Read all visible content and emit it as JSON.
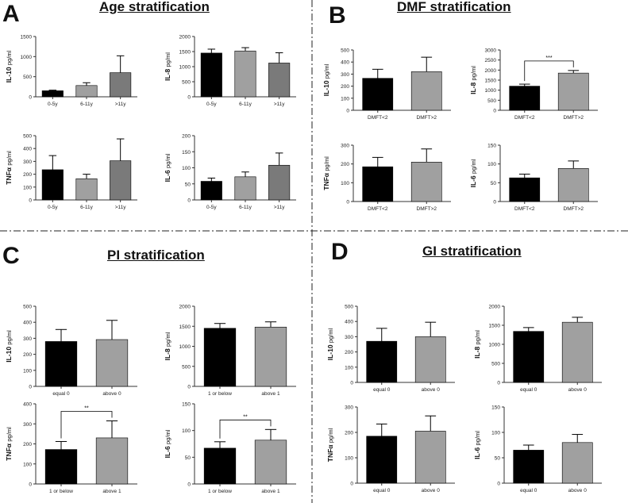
{
  "panels": [
    {
      "letter": "A",
      "title": "Age stratification"
    },
    {
      "letter": "B",
      "title": "DMF stratification"
    },
    {
      "letter": "C",
      "title": "PI stratification"
    },
    {
      "letter": "D",
      "title": "GI stratification"
    }
  ],
  "colors": {
    "black": "#000000",
    "light_gray": "#a0a0a0",
    "dark_gray": "#7a7a7a",
    "axis": "#333333"
  },
  "chart_data": [
    {
      "id": "A1",
      "type": "bar",
      "ylabel": "IL-10",
      "yunit": "pg/ml",
      "yticks": [
        0,
        500,
        1000,
        1500
      ],
      "ylim": [
        0,
        1500
      ],
      "categories": [
        "0-5y",
        "6-11y",
        ">11y"
      ],
      "values": [
        150,
        280,
        600
      ],
      "errors": [
        15,
        70,
        420
      ],
      "colors": [
        "black",
        "light_gray",
        "dark_gray"
      ]
    },
    {
      "id": "A2",
      "type": "bar",
      "ylabel": "IL-8",
      "yunit": "pg/ml",
      "yticks": [
        0,
        500,
        1000,
        1500,
        2000
      ],
      "ylim": [
        0,
        2000
      ],
      "categories": [
        "0-5y",
        "6-11y",
        ">11y"
      ],
      "values": [
        1450,
        1520,
        1120
      ],
      "errors": [
        130,
        110,
        340
      ],
      "colors": [
        "black",
        "light_gray",
        "dark_gray"
      ]
    },
    {
      "id": "A3",
      "type": "bar",
      "ylabel": "TNFα",
      "yunit": "pg/ml",
      "yticks": [
        0,
        100,
        200,
        300,
        400,
        500
      ],
      "ylim": [
        0,
        500
      ],
      "categories": [
        "0-5y",
        "6-11y",
        ">11y"
      ],
      "values": [
        235,
        165,
        305
      ],
      "errors": [
        110,
        35,
        170
      ],
      "colors": [
        "black",
        "light_gray",
        "dark_gray"
      ]
    },
    {
      "id": "A4",
      "type": "bar",
      "ylabel": "IL-6",
      "yunit": "pg/ml",
      "yticks": [
        0,
        50,
        100,
        150,
        200
      ],
      "ylim": [
        0,
        200
      ],
      "categories": [
        "0-5y",
        "6-11y",
        ">11y"
      ],
      "values": [
        58,
        72,
        108
      ],
      "errors": [
        10,
        15,
        38
      ],
      "colors": [
        "black",
        "light_gray",
        "dark_gray"
      ]
    },
    {
      "id": "B1",
      "type": "bar",
      "ylabel": "IL-10",
      "yunit": "pg/ml",
      "yticks": [
        0,
        100,
        200,
        300,
        400,
        500
      ],
      "ylim": [
        0,
        500
      ],
      "categories": [
        "DMFT<2",
        "DMFT>2"
      ],
      "values": [
        265,
        320
      ],
      "errors": [
        75,
        120
      ],
      "colors": [
        "black",
        "light_gray"
      ]
    },
    {
      "id": "B2",
      "type": "bar",
      "ylabel": "IL-8",
      "yunit": "pg/ml",
      "yticks": [
        0,
        500,
        1000,
        1500,
        2000,
        2500,
        3000
      ],
      "ylim": [
        0,
        3000
      ],
      "categories": [
        "DMFT<2",
        "DMFT>2"
      ],
      "values": [
        1200,
        1850
      ],
      "errors": [
        100,
        130
      ],
      "colors": [
        "black",
        "light_gray"
      ],
      "significance": "***"
    },
    {
      "id": "B3",
      "type": "bar",
      "ylabel": "TNFα",
      "yunit": "pg/ml",
      "yticks": [
        0,
        100,
        200,
        300
      ],
      "ylim": [
        0,
        300
      ],
      "categories": [
        "DMFT<2",
        "DMFT>2"
      ],
      "values": [
        185,
        210
      ],
      "errors": [
        50,
        70
      ],
      "colors": [
        "black",
        "light_gray"
      ]
    },
    {
      "id": "B4",
      "type": "bar",
      "ylabel": "IL-6",
      "yunit": "pg/ml",
      "yticks": [
        0,
        50,
        100,
        150
      ],
      "ylim": [
        0,
        150
      ],
      "categories": [
        "DMFT<2",
        "DMFT>2"
      ],
      "values": [
        63,
        88
      ],
      "errors": [
        10,
        20
      ],
      "colors": [
        "black",
        "light_gray"
      ]
    },
    {
      "id": "C1",
      "type": "bar",
      "ylabel": "IL-10",
      "yunit": "pg/ml",
      "yticks": [
        0,
        100,
        200,
        300,
        400,
        500
      ],
      "ylim": [
        0,
        500
      ],
      "categories": [
        "equal 0",
        "above 0"
      ],
      "values": [
        280,
        292
      ],
      "errors": [
        75,
        120
      ],
      "colors": [
        "black",
        "light_gray"
      ]
    },
    {
      "id": "C2",
      "type": "bar",
      "ylabel": "IL-8",
      "yunit": "pg/ml",
      "yticks": [
        0,
        500,
        1000,
        1500,
        2000
      ],
      "ylim": [
        0,
        2000
      ],
      "categories": [
        "1 or below",
        "above 1"
      ],
      "values": [
        1450,
        1480
      ],
      "errors": [
        120,
        130
      ],
      "colors": [
        "black",
        "light_gray"
      ]
    },
    {
      "id": "C3",
      "type": "bar",
      "ylabel": "TNFα",
      "yunit": "pg/ml",
      "yticks": [
        0,
        100,
        200,
        300,
        400
      ],
      "ylim": [
        0,
        400
      ],
      "categories": [
        "1 or below",
        "above 1"
      ],
      "values": [
        172,
        230
      ],
      "errors": [
        40,
        85
      ],
      "colors": [
        "black",
        "light_gray"
      ],
      "significance": "**"
    },
    {
      "id": "C4",
      "type": "bar",
      "ylabel": "IL-6",
      "yunit": "pg/ml",
      "yticks": [
        0,
        50,
        100,
        150
      ],
      "ylim": [
        0,
        150
      ],
      "categories": [
        "1 or below",
        "above 1"
      ],
      "values": [
        67,
        82
      ],
      "errors": [
        12,
        20
      ],
      "colors": [
        "black",
        "light_gray"
      ],
      "significance": "**"
    },
    {
      "id": "D1",
      "type": "bar",
      "ylabel": "IL-10",
      "yunit": "pg/ml",
      "yticks": [
        0,
        100,
        200,
        300,
        400,
        500
      ],
      "ylim": [
        0,
        500
      ],
      "categories": [
        "equal 0",
        "above 0"
      ],
      "values": [
        270,
        300
      ],
      "errors": [
        85,
        95
      ],
      "colors": [
        "black",
        "light_gray"
      ]
    },
    {
      "id": "D2",
      "type": "bar",
      "ylabel": "IL-8",
      "yunit": "pg/ml",
      "yticks": [
        0,
        500,
        1000,
        1500,
        2000
      ],
      "ylim": [
        0,
        2000
      ],
      "categories": [
        "equal 0",
        "above 0"
      ],
      "values": [
        1340,
        1580
      ],
      "errors": [
        100,
        130
      ],
      "colors": [
        "black",
        "light_gray"
      ]
    },
    {
      "id": "D3",
      "type": "bar",
      "ylabel": "TNFα",
      "yunit": "pg/ml",
      "yticks": [
        0,
        100,
        200,
        300
      ],
      "ylim": [
        0,
        300
      ],
      "categories": [
        "equal 0",
        "above 0"
      ],
      "values": [
        185,
        205
      ],
      "errors": [
        48,
        60
      ],
      "colors": [
        "black",
        "light_gray"
      ]
    },
    {
      "id": "D4",
      "type": "bar",
      "ylabel": "IL-6",
      "yunit": "pg/ml",
      "yticks": [
        0,
        50,
        100,
        150
      ],
      "ylim": [
        0,
        150
      ],
      "categories": [
        "equal 0",
        "above 0"
      ],
      "values": [
        65,
        80
      ],
      "errors": [
        10,
        16
      ],
      "colors": [
        "black",
        "light_gray"
      ]
    }
  ]
}
